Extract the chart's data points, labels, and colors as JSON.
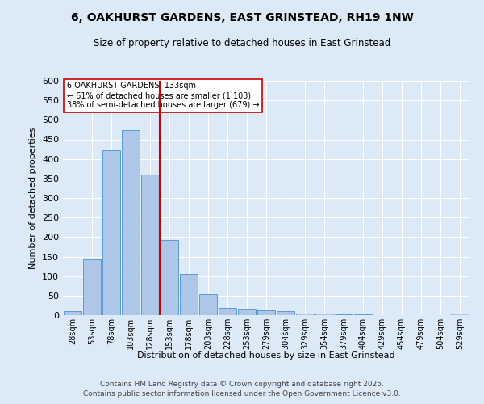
{
  "title1": "6, OAKHURST GARDENS, EAST GRINSTEAD, RH19 1NW",
  "title2": "Size of property relative to detached houses in East Grinstead",
  "xlabel": "Distribution of detached houses by size in East Grinstead",
  "ylabel": "Number of detached properties",
  "bar_labels": [
    "28sqm",
    "53sqm",
    "78sqm",
    "103sqm",
    "128sqm",
    "153sqm",
    "178sqm",
    "203sqm",
    "228sqm",
    "253sqm",
    "279sqm",
    "304sqm",
    "329sqm",
    "354sqm",
    "379sqm",
    "404sqm",
    "429sqm",
    "454sqm",
    "479sqm",
    "504sqm",
    "529sqm"
  ],
  "bar_values": [
    10,
    142,
    422,
    473,
    360,
    192,
    105,
    53,
    18,
    14,
    12,
    10,
    4,
    5,
    3,
    3,
    0,
    0,
    0,
    0,
    4
  ],
  "bar_color": "#aec6e8",
  "bar_edge_color": "#5b9bd5",
  "vline_x": 4.5,
  "vline_color": "#cc0000",
  "annotation_text": "6 OAKHURST GARDENS: 133sqm\n← 61% of detached houses are smaller (1,103)\n38% of semi-detached houses are larger (679) →",
  "annotation_box_color": "#ffffff",
  "annotation_box_edge": "#cc0000",
  "ylim": [
    0,
    600
  ],
  "yticks": [
    0,
    50,
    100,
    150,
    200,
    250,
    300,
    350,
    400,
    450,
    500,
    550,
    600
  ],
  "bg_color": "#dce9f7",
  "grid_color": "#ffffff",
  "footer1": "Contains HM Land Registry data © Crown copyright and database right 2025.",
  "footer2": "Contains public sector information licensed under the Open Government Licence v3.0."
}
